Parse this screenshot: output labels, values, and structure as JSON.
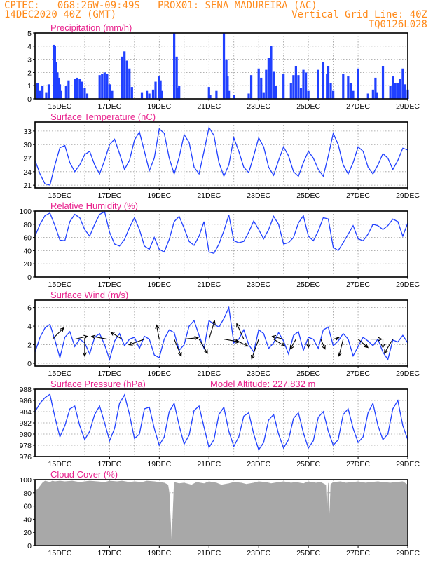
{
  "header": {
    "line1_left": "CPTEC:   068:26W-09:49S   PROX01: SENA MADUREIRA (AC)",
    "line2_left": "14DEC2020 40Z (GMT)",
    "line2_right": "Vertical Grid Line: 40Z",
    "line3_right": "TQ0126L028"
  },
  "colors": {
    "header": "#ff8a1a",
    "panel_title": "#e8208c",
    "series": "#2040ff",
    "cloud": "#a8a8a8",
    "wind_arrow": "#000000"
  },
  "x_ticks": [
    "15DEC",
    "17DEC",
    "19DEC",
    "21DEC",
    "23DEC",
    "25DEC",
    "27DEC",
    "29DEC"
  ],
  "chart_data": [
    {
      "type": "bar",
      "title": "Precipitation (mm/h)",
      "ylim": [
        0,
        5
      ],
      "yticks": [
        0,
        1,
        2,
        3,
        4,
        5
      ],
      "x_day_range": [
        14,
        29
      ],
      "x": [
        14.1,
        14.2,
        14.3,
        14.45,
        14.55,
        14.75,
        14.8,
        14.85,
        14.9,
        14.95,
        15.0,
        15.05,
        15.25,
        15.35,
        15.6,
        15.7,
        15.8,
        15.9,
        16.0,
        16.1,
        16.6,
        16.7,
        16.8,
        16.9,
        17.0,
        17.1,
        17.5,
        17.6,
        17.7,
        17.8,
        17.9,
        18.3,
        18.5,
        18.6,
        18.75,
        18.85,
        19.0,
        19.05,
        19.1,
        19.6,
        19.7,
        19.75,
        19.8,
        21.0,
        21.05,
        21.3,
        21.6,
        21.7,
        21.75,
        21.8,
        22.0,
        22.6,
        22.7,
        23.0,
        23.1,
        23.2,
        23.3,
        23.4,
        23.5,
        23.6,
        23.7,
        24.0,
        24.3,
        24.4,
        24.5,
        24.6,
        24.7,
        24.8,
        24.9,
        25.0,
        25.4,
        25.6,
        25.75,
        25.8,
        25.9,
        26.0,
        26.4,
        26.6,
        26.7,
        26.8,
        27.0,
        27.4,
        27.6,
        27.7,
        27.75,
        28.0,
        28.3,
        28.4,
        28.5,
        28.6,
        28.7,
        28.8,
        28.9,
        29.0
      ],
      "values": [
        1.2,
        0.6,
        1.0,
        0.5,
        1.1,
        4.1,
        4.0,
        2.8,
        2.0,
        1.6,
        1.1,
        0.6,
        1.0,
        1.4,
        1.5,
        1.6,
        1.5,
        1.3,
        0.8,
        0.4,
        1.8,
        1.9,
        2.0,
        1.9,
        1.1,
        0.6,
        3.2,
        3.6,
        2.9,
        2.3,
        0.9,
        0.5,
        0.6,
        0.4,
        0.7,
        1.3,
        1.7,
        1.4,
        0.6,
        5.0,
        3.2,
        0.8,
        1.0,
        0.9,
        0.3,
        0.6,
        5.0,
        3.0,
        1.7,
        0.6,
        0.3,
        0.4,
        1.8,
        2.3,
        1.6,
        0.5,
        2.2,
        3.1,
        4.0,
        2.1,
        1.0,
        1.9,
        1.2,
        1.8,
        2.5,
        1.8,
        0.8,
        2.2,
        2.0,
        0.6,
        2.2,
        2.8,
        1.9,
        2.5,
        1.2,
        0.6,
        1.9,
        1.7,
        1.2,
        0.6,
        2.3,
        0.4,
        0.7,
        1.6,
        0.5,
        2.5,
        1.0,
        1.7,
        1.2,
        1.2,
        1.5,
        2.3,
        1.1,
        0.7
      ]
    },
    {
      "type": "line",
      "title": "Surface Temperature (nC)",
      "ylim": [
        20.4,
        35
      ],
      "yticks": [
        21,
        24,
        27,
        30,
        33
      ],
      "x_day_range": [
        14,
        29
      ],
      "x": [
        14.0,
        14.2,
        14.4,
        14.6,
        14.8,
        15.0,
        15.2,
        15.4,
        15.6,
        15.8,
        16.0,
        16.2,
        16.4,
        16.6,
        16.8,
        17.0,
        17.2,
        17.4,
        17.6,
        17.8,
        18.0,
        18.2,
        18.4,
        18.6,
        18.8,
        19.0,
        19.2,
        19.4,
        19.6,
        19.8,
        20.0,
        20.2,
        20.4,
        20.6,
        20.8,
        21.0,
        21.2,
        21.4,
        21.6,
        21.8,
        22.0,
        22.2,
        22.4,
        22.6,
        22.8,
        23.0,
        23.2,
        23.4,
        23.6,
        23.8,
        24.0,
        24.2,
        24.4,
        24.6,
        24.8,
        25.0,
        25.2,
        25.4,
        25.6,
        25.8,
        26.0,
        26.2,
        26.4,
        26.6,
        26.8,
        27.0,
        27.2,
        27.4,
        27.6,
        27.8,
        28.0,
        28.2,
        28.4,
        28.6,
        28.8,
        29.0
      ],
      "values": [
        26.5,
        23.5,
        21.3,
        21.0,
        25.5,
        29.3,
        29.8,
        26.0,
        24.0,
        25.5,
        27.8,
        28.5,
        25.5,
        23.5,
        26.5,
        30.0,
        31.2,
        28.0,
        24.5,
        26.5,
        31.0,
        32.8,
        28.5,
        24.2,
        27.0,
        33.5,
        32.5,
        27.0,
        23.5,
        27.2,
        32.2,
        30.5,
        25.0,
        23.5,
        28.5,
        33.8,
        32.0,
        26.0,
        23.0,
        25.5,
        31.5,
        28.5,
        25.0,
        23.8,
        27.5,
        31.5,
        29.5,
        25.0,
        23.2,
        26.5,
        29.5,
        27.5,
        24.0,
        23.0,
        26.0,
        28.5,
        27.0,
        24.5,
        23.0,
        27.5,
        32.5,
        30.0,
        25.5,
        23.5,
        26.0,
        29.5,
        28.5,
        25.0,
        23.5,
        25.5,
        28.0,
        27.0,
        24.5,
        26.5,
        29.2,
        28.8
      ]
    },
    {
      "type": "line",
      "title": "Relative Humidity (%)",
      "ylim": [
        0,
        100
      ],
      "yticks": [
        0,
        20,
        40,
        60,
        80,
        100
      ],
      "x_day_range": [
        14,
        29
      ],
      "x": [
        14.0,
        14.2,
        14.4,
        14.6,
        14.8,
        15.0,
        15.2,
        15.4,
        15.6,
        15.8,
        16.0,
        16.2,
        16.4,
        16.6,
        16.8,
        17.0,
        17.2,
        17.4,
        17.6,
        17.8,
        18.0,
        18.2,
        18.4,
        18.6,
        18.8,
        19.0,
        19.2,
        19.4,
        19.6,
        19.8,
        20.0,
        20.2,
        20.4,
        20.6,
        20.8,
        21.0,
        21.2,
        21.4,
        21.6,
        21.8,
        22.0,
        22.2,
        22.4,
        22.6,
        22.8,
        23.0,
        23.2,
        23.4,
        23.6,
        23.8,
        24.0,
        24.2,
        24.4,
        24.6,
        24.8,
        25.0,
        25.2,
        25.4,
        25.6,
        25.8,
        26.0,
        26.2,
        26.4,
        26.6,
        26.8,
        27.0,
        27.2,
        27.4,
        27.6,
        27.8,
        28.0,
        28.2,
        28.4,
        28.6,
        28.8,
        29.0
      ],
      "values": [
        62,
        80,
        93,
        97,
        78,
        56,
        55,
        84,
        95,
        90,
        72,
        62,
        80,
        95,
        99,
        68,
        50,
        47,
        57,
        75,
        90,
        72,
        47,
        42,
        60,
        42,
        38,
        57,
        84,
        92,
        74,
        54,
        48,
        62,
        84,
        38,
        36,
        50,
        70,
        94,
        55,
        52,
        54,
        68,
        85,
        72,
        58,
        72,
        92,
        80,
        50,
        52,
        60,
        82,
        93,
        62,
        55,
        70,
        90,
        88,
        45,
        40,
        52,
        65,
        78,
        58,
        55,
        65,
        80,
        78,
        72,
        78,
        88,
        84,
        62,
        82
      ]
    },
    {
      "type": "line",
      "title": "Surface Wind (m/s)",
      "ylim": [
        -0.3,
        6.8
      ],
      "yticks": [
        0,
        2,
        4,
        6
      ],
      "x_day_range": [
        14,
        29
      ],
      "x": [
        14.0,
        14.2,
        14.4,
        14.6,
        14.8,
        15.0,
        15.2,
        15.4,
        15.6,
        15.8,
        16.0,
        16.2,
        16.4,
        16.6,
        16.8,
        17.0,
        17.2,
        17.4,
        17.6,
        17.8,
        18.0,
        18.2,
        18.4,
        18.6,
        18.8,
        19.0,
        19.2,
        19.4,
        19.6,
        19.8,
        20.0,
        20.2,
        20.4,
        20.6,
        20.8,
        21.0,
        21.2,
        21.4,
        21.6,
        21.8,
        22.0,
        22.2,
        22.4,
        22.6,
        22.8,
        23.0,
        23.2,
        23.4,
        23.6,
        23.8,
        24.0,
        24.2,
        24.4,
        24.6,
        24.8,
        25.0,
        25.2,
        25.4,
        25.6,
        25.8,
        26.0,
        26.2,
        26.4,
        26.6,
        26.8,
        27.0,
        27.2,
        27.4,
        27.6,
        27.8,
        28.0,
        28.2,
        28.4,
        28.6,
        28.8,
        29.0
      ],
      "values": [
        1.2,
        2.8,
        3.8,
        4.2,
        2.5,
        0.6,
        2.8,
        3.4,
        1.8,
        2.6,
        2.2,
        1.0,
        2.8,
        3.2,
        2.0,
        0.4,
        2.4,
        3.2,
        1.9,
        2.6,
        2.8,
        1.6,
        2.9,
        2.6,
        0.9,
        0.6,
        2.6,
        3.6,
        3.3,
        1.4,
        2.0,
        4.0,
        4.6,
        3.0,
        1.6,
        4.6,
        4.2,
        3.9,
        4.8,
        6.0,
        2.2,
        2.6,
        3.6,
        2.0,
        1.2,
        3.6,
        3.2,
        1.6,
        2.2,
        3.3,
        2.4,
        1.0,
        3.0,
        3.4,
        1.4,
        2.8,
        2.6,
        1.6,
        3.6,
        3.9,
        1.9,
        2.4,
        3.2,
        2.6,
        0.8,
        1.8,
        2.8,
        2.4,
        1.9,
        2.6,
        1.2,
        0.4,
        2.5,
        2.3,
        3.0,
        2.2
      ],
      "wind_arrows": {
        "x": [
          14.7,
          15.6,
          16.0,
          16.9,
          17.5,
          18.4,
          19.0,
          19.6,
          20.0,
          20.6,
          21.0,
          21.6,
          22.0,
          22.4,
          23.0,
          23.6,
          24.0,
          24.5,
          25.0,
          25.5,
          26.0,
          26.4,
          27.0,
          27.5,
          28.0,
          28.4
        ],
        "u": [
          0.8,
          0.9,
          0.0,
          -1.1,
          -0.8,
          -1.1,
          -0.2,
          0.5,
          1.0,
          0.6,
          0.4,
          1.1,
          1.0,
          -0.5,
          -0.5,
          0.8,
          -0.8,
          -0.4,
          0.0,
          0.3,
          0.4,
          -0.3,
          0.7,
          0.8,
          0.0,
          -0.6
        ],
        "v": [
          0.8,
          0.2,
          -1.2,
          0.2,
          0.5,
          -0.4,
          1.0,
          -1.2,
          0.1,
          -1.0,
          1.3,
          -0.2,
          -0.5,
          1.1,
          -1.4,
          -0.5,
          0.2,
          -0.7,
          -0.6,
          -0.7,
          0.1,
          -1.2,
          -0.6,
          0.0,
          -0.6,
          -1.0
        ]
      }
    },
    {
      "type": "line",
      "title": "Surface Pressure (hPa)",
      "annotation": "Model Altitude: 227.832 m",
      "ylim": [
        976,
        988
      ],
      "yticks": [
        976,
        978,
        980,
        982,
        984,
        986,
        988
      ],
      "x_day_range": [
        14,
        29
      ],
      "x": [
        14.0,
        14.2,
        14.4,
        14.6,
        14.8,
        15.0,
        15.2,
        15.4,
        15.6,
        15.8,
        16.0,
        16.2,
        16.4,
        16.6,
        16.8,
        17.0,
        17.2,
        17.4,
        17.6,
        17.8,
        18.0,
        18.2,
        18.4,
        18.6,
        18.8,
        19.0,
        19.2,
        19.4,
        19.6,
        19.8,
        20.0,
        20.2,
        20.4,
        20.6,
        20.8,
        21.0,
        21.2,
        21.4,
        21.6,
        21.8,
        22.0,
        22.2,
        22.4,
        22.6,
        22.8,
        23.0,
        23.2,
        23.4,
        23.6,
        23.8,
        24.0,
        24.2,
        24.4,
        24.6,
        24.8,
        25.0,
        25.2,
        25.4,
        25.6,
        25.8,
        26.0,
        26.2,
        26.4,
        26.6,
        26.8,
        27.0,
        27.2,
        27.4,
        27.6,
        27.8,
        28.0,
        28.2,
        28.4,
        28.6,
        28.8,
        29.0
      ],
      "values": [
        984.0,
        985.5,
        986.5,
        987.1,
        983.0,
        979.5,
        981.5,
        984.5,
        985.0,
        981.5,
        979.0,
        980.5,
        983.5,
        985.0,
        982.0,
        978.8,
        981.0,
        985.5,
        987.0,
        983.5,
        979.2,
        980.0,
        984.5,
        984.8,
        981.0,
        978.0,
        979.5,
        984.0,
        985.5,
        981.5,
        978.2,
        979.8,
        984.2,
        985.0,
        981.2,
        977.6,
        979.0,
        983.5,
        984.8,
        980.5,
        977.8,
        979.5,
        983.2,
        983.8,
        980.0,
        977.2,
        978.5,
        982.5,
        983.5,
        980.0,
        977.5,
        979.0,
        982.8,
        983.8,
        980.2,
        977.5,
        978.8,
        983.0,
        984.0,
        980.5,
        978.0,
        979.0,
        983.5,
        984.5,
        981.0,
        978.5,
        979.5,
        983.8,
        985.5,
        981.5,
        979.0,
        980.0,
        984.5,
        986.0,
        981.5,
        979.0
      ]
    },
    {
      "type": "area",
      "title": "Cloud Cover (%)",
      "ylim": [
        0,
        100
      ],
      "yticks": [
        0,
        20,
        40,
        60,
        80,
        100
      ],
      "x_day_range": [
        14,
        29
      ],
      "x": [
        14.0,
        14.1,
        14.2,
        14.3,
        14.4,
        14.5,
        14.6,
        14.7,
        14.8,
        15.0,
        15.2,
        15.5,
        15.8,
        16.0,
        16.2,
        16.5,
        16.8,
        17.0,
        17.3,
        17.5,
        17.8,
        18.0,
        18.3,
        18.5,
        18.8,
        19.0,
        19.2,
        19.35,
        19.4,
        19.5,
        19.6,
        19.8,
        20.0,
        20.3,
        20.5,
        20.8,
        21.0,
        21.3,
        21.5,
        21.8,
        22.0,
        22.3,
        22.5,
        22.8,
        23.0,
        23.3,
        23.5,
        23.8,
        24.0,
        24.3,
        24.5,
        24.8,
        25.0,
        25.3,
        25.5,
        25.7,
        25.75,
        25.8,
        25.85,
        25.9,
        26.0,
        26.3,
        26.5,
        26.8,
        27.0,
        27.3,
        27.5,
        27.8,
        28.0,
        28.3,
        28.5,
        28.8,
        29.0
      ],
      "values": [
        82,
        85,
        90,
        95,
        98,
        97,
        96,
        98,
        97,
        98,
        97,
        98,
        96,
        97,
        98,
        97,
        96,
        98,
        97,
        98,
        96,
        97,
        96,
        98,
        97,
        96,
        95,
        92,
        80,
        0,
        96,
        94,
        95,
        92,
        96,
        94,
        97,
        95,
        92,
        94,
        96,
        95,
        93,
        95,
        97,
        96,
        94,
        96,
        97,
        95,
        96,
        94,
        97,
        95,
        96,
        92,
        42,
        95,
        40,
        93,
        96,
        97,
        95,
        96,
        97,
        95,
        96,
        97,
        96,
        95,
        96,
        97,
        92
      ]
    }
  ]
}
